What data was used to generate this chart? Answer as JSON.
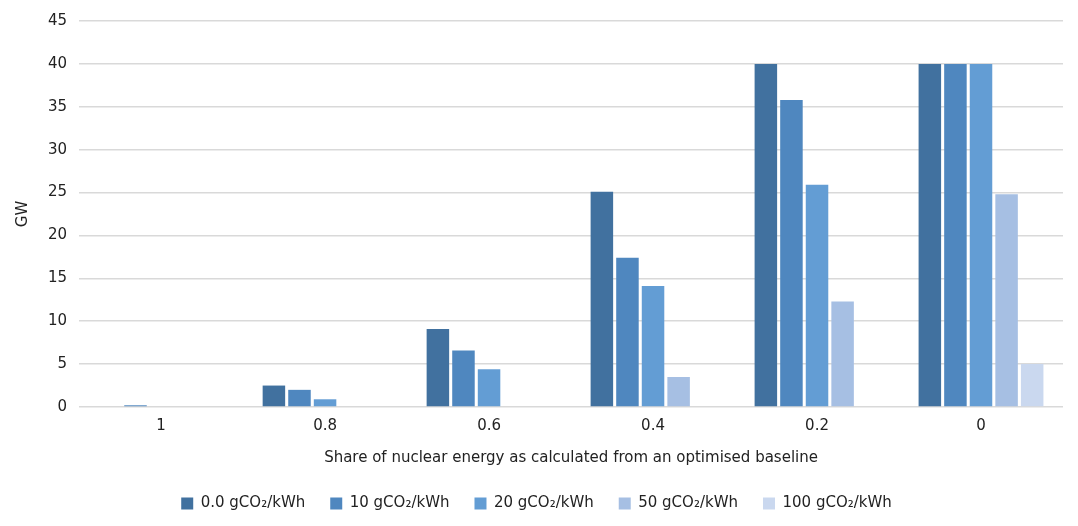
{
  "chart_data": {
    "type": "bar",
    "xlabel": "Share of nuclear energy as calculated from an optimised baseline",
    "ylabel": "GW",
    "categories": [
      "1",
      "0.8",
      "0.6",
      "0.4",
      "0.2",
      "0"
    ],
    "series": [
      {
        "name": "0.0 gCO₂/kWh",
        "color": "#41719f",
        "values": [
          0,
          2.5,
          9.1,
          25.1,
          40,
          40
        ]
      },
      {
        "name": "10 gCO₂/kWh",
        "color": "#4f87bf",
        "values": [
          0.2,
          2.0,
          6.6,
          17.4,
          35.8,
          40
        ]
      },
      {
        "name": "20 gCO₂/kWh",
        "color": "#639dd4",
        "values": [
          0,
          0.9,
          4.4,
          14.1,
          25.9,
          40
        ]
      },
      {
        "name": "50 gCO₂/kWh",
        "color": "#a6bfe3",
        "values": [
          0,
          0,
          0,
          3.5,
          12.3,
          24.8
        ]
      },
      {
        "name": "100 gCO₂/kWh",
        "color": "#cad8ef",
        "values": [
          0,
          0,
          0,
          0,
          0,
          5.0
        ]
      }
    ],
    "ylim": [
      0,
      45
    ],
    "yticks": [
      0,
      5,
      10,
      15,
      20,
      25,
      30,
      35,
      40,
      45
    ],
    "grid": "y",
    "legend": "bottom"
  }
}
